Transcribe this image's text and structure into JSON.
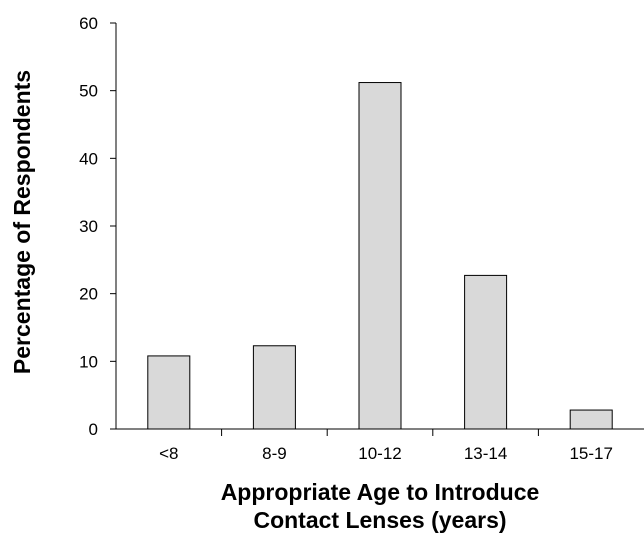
{
  "chart_data": {
    "type": "bar",
    "categories": [
      "<8",
      "8-9",
      "10-12",
      "13-14",
      "15-17"
    ],
    "values": [
      10.8,
      12.3,
      51.2,
      22.7,
      2.8
    ],
    "ylim": [
      0,
      60
    ],
    "yticks": [
      "0",
      "10",
      "20",
      "30",
      "40",
      "50",
      "60"
    ],
    "ylabel": "Percentage of Respondents",
    "xlabel_line1": "Appropriate Age to Introduce",
    "xlabel_line2": "Contact Lenses (years)",
    "grid": false,
    "bar_color": "#d9d9d9"
  }
}
